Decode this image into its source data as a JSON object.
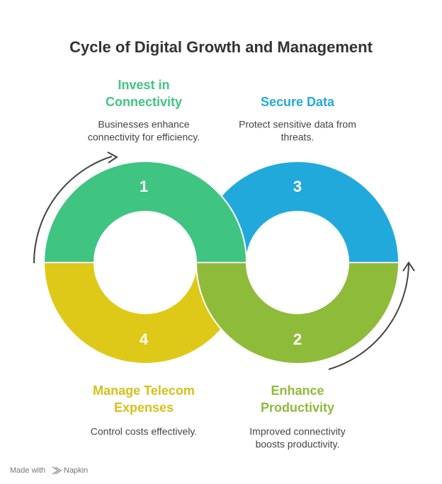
{
  "title": "Cycle of Digital Growth and Management",
  "steps": [
    {
      "number": "1",
      "title_lines": [
        "Invest in",
        "Connectivity"
      ],
      "description_lines": [
        "Businesses enhance",
        "connectivity for efficiency."
      ]
    },
    {
      "number": "2",
      "title_lines": [
        "Enhance",
        "Productivity"
      ],
      "description_lines": [
        "Improved connectivity",
        "boosts productivity."
      ]
    },
    {
      "number": "3",
      "title_lines": [
        "Secure Data"
      ],
      "description_lines": [
        "Protect sensitive data from",
        "threats."
      ]
    },
    {
      "number": "4",
      "title_lines": [
        "Manage Telecom",
        "Expenses"
      ],
      "description_lines": [
        "Control costs effectively."
      ]
    }
  ],
  "footer": {
    "text": "Made with",
    "brand": "Napkin"
  }
}
